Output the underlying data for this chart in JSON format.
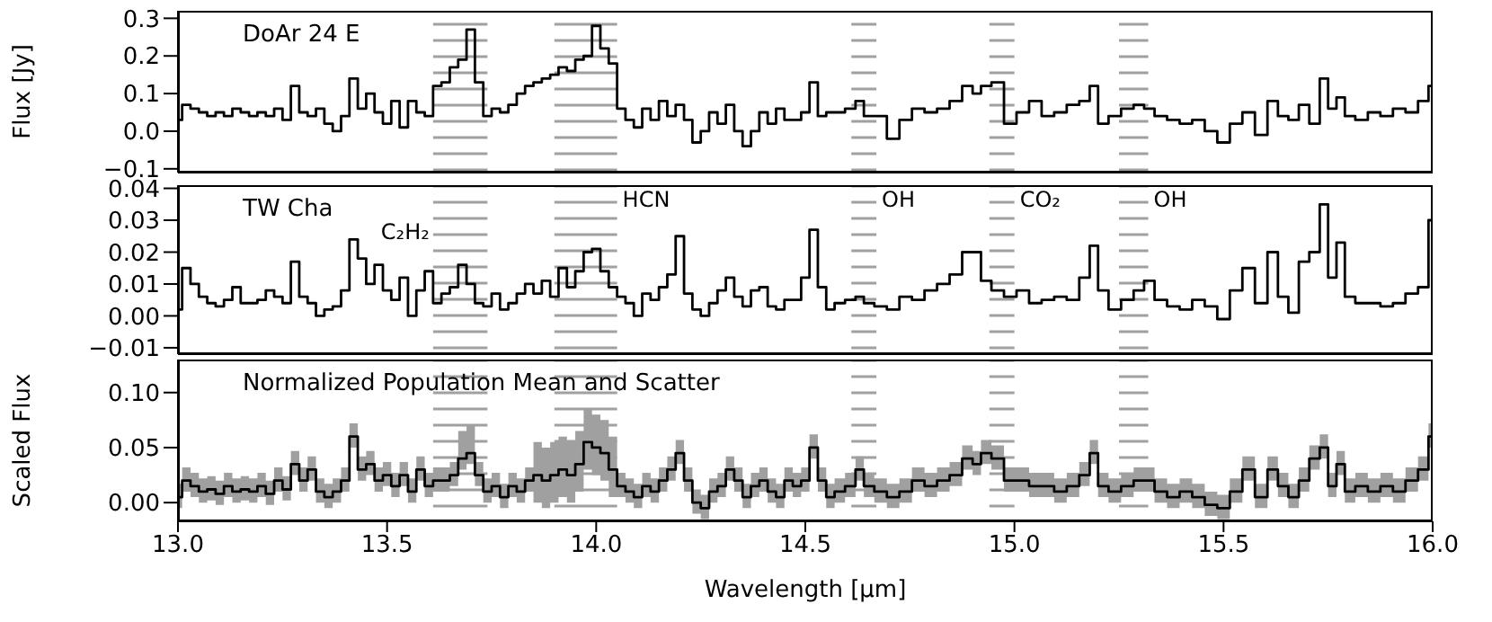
{
  "chart_data": [
    {
      "type": "step",
      "ylabel": "Flux [Jy]",
      "annotations": [
        "DoAr 24 E"
      ],
      "tick_labels": "y",
      "x": [
        13.0,
        13.02,
        13.04,
        13.06,
        13.08,
        13.1,
        13.12,
        13.14,
        13.16,
        13.18,
        13.2,
        13.22,
        13.24,
        13.26,
        13.28,
        13.3,
        13.32,
        13.34,
        13.36,
        13.38,
        13.4,
        13.42,
        13.44,
        13.46,
        13.48,
        13.5,
        13.52,
        13.54,
        13.56,
        13.58,
        13.6,
        13.62,
        13.64,
        13.66,
        13.68,
        13.7,
        13.72,
        13.74,
        13.76,
        13.78,
        13.8,
        13.82,
        13.84,
        13.86,
        13.88,
        13.9,
        13.92,
        13.94,
        13.96,
        13.98,
        14.0,
        14.02,
        14.04,
        14.06,
        14.08,
        14.1,
        14.12,
        14.14,
        14.16,
        14.18,
        14.2,
        14.22,
        14.24,
        14.26,
        14.28,
        14.3,
        14.32,
        14.34,
        14.36,
        14.38,
        14.4,
        14.42,
        14.44,
        14.46,
        14.48,
        14.5,
        14.52,
        14.54,
        14.56,
        14.58,
        14.61,
        14.63,
        14.65,
        14.68,
        14.71,
        14.74,
        14.77,
        14.8,
        14.83,
        14.86,
        14.89,
        14.91,
        14.93,
        14.96,
        14.99,
        15.02,
        15.05,
        15.08,
        15.11,
        15.14,
        15.17,
        15.19,
        15.21,
        15.24,
        15.27,
        15.3,
        15.32,
        15.35,
        15.38,
        15.41,
        15.44,
        15.47,
        15.5,
        15.53,
        15.56,
        15.59,
        15.62,
        15.64,
        15.67,
        15.69,
        15.72,
        15.74,
        15.76,
        15.78,
        15.8,
        15.83,
        15.86,
        15.89,
        15.92,
        15.95,
        15.98,
        16.0
      ],
      "series": [
        {
          "color": "#000000",
          "values": [
            0.03,
            0.07,
            0.06,
            0.05,
            0.04,
            0.05,
            0.04,
            0.06,
            0.05,
            0.04,
            0.05,
            0.04,
            0.06,
            0.03,
            0.12,
            0.05,
            0.04,
            0.06,
            0.02,
            0.0,
            0.04,
            0.14,
            0.06,
            0.1,
            0.05,
            0.02,
            0.08,
            0.01,
            0.08,
            0.05,
            0.04,
            0.12,
            0.13,
            0.17,
            0.19,
            0.27,
            0.13,
            0.04,
            0.06,
            0.05,
            0.07,
            0.1,
            0.12,
            0.13,
            0.14,
            0.15,
            0.17,
            0.16,
            0.19,
            0.2,
            0.28,
            0.22,
            0.18,
            0.06,
            0.03,
            0.01,
            0.06,
            0.03,
            0.08,
            0.04,
            0.07,
            0.03,
            -0.03,
            0.0,
            0.05,
            0.02,
            0.07,
            0.0,
            -0.04,
            0.0,
            0.05,
            0.02,
            0.06,
            0.03,
            0.03,
            0.05,
            0.13,
            0.04,
            0.05,
            0.05,
            0.06,
            0.08,
            0.04,
            0.04,
            -0.02,
            0.03,
            0.06,
            0.05,
            0.06,
            0.08,
            0.12,
            0.1,
            0.12,
            0.13,
            0.02,
            0.05,
            0.08,
            0.04,
            0.05,
            0.07,
            0.08,
            0.12,
            0.02,
            0.04,
            0.06,
            0.07,
            0.06,
            0.04,
            0.03,
            0.02,
            0.03,
            0.0,
            -0.03,
            0.02,
            0.05,
            -0.01,
            0.08,
            0.04,
            0.03,
            0.07,
            0.02,
            0.14,
            0.06,
            0.09,
            0.04,
            0.03,
            0.05,
            0.04,
            0.06,
            0.05,
            0.08,
            0.12
          ]
        }
      ],
      "xlim": [
        13,
        16
      ],
      "xticks": [
        {
          "value": 13,
          "label": null
        },
        {
          "value": 13.5,
          "label": null
        },
        {
          "value": 14,
          "label": null
        },
        {
          "value": 14.5,
          "label": null
        },
        {
          "value": 15,
          "label": null
        },
        {
          "value": 15.5,
          "label": null
        },
        {
          "value": 16,
          "label": null
        }
      ],
      "ylim": [
        -0.11,
        0.32
      ],
      "yticks": [
        {
          "value": -0.1,
          "label": "−0.1"
        },
        {
          "value": 0,
          "label": "0.0"
        },
        0.1,
        0.2,
        0.3
      ],
      "bands": [
        {
          "axis": "x",
          "from": 13.61,
          "to": 13.74,
          "color": "#a0a0a0"
        },
        {
          "axis": "x",
          "from": 13.9,
          "to": 14.05,
          "color": "#a0a0a0"
        },
        {
          "axis": "x",
          "from": 14.61,
          "to": 14.67,
          "color": "#a0a0a0"
        },
        {
          "axis": "x",
          "from": 14.94,
          "to": 15.0,
          "color": "#a0a0a0"
        },
        {
          "axis": "x",
          "from": 15.25,
          "to": 15.32,
          "color": "#a0a0a0"
        }
      ]
    },
    {
      "type": "step",
      "annotations": [
        "TW Cha"
      ],
      "tick_labels": "y",
      "x": [
        13.0,
        13.02,
        13.04,
        13.06,
        13.08,
        13.1,
        13.12,
        13.14,
        13.16,
        13.18,
        13.2,
        13.22,
        13.24,
        13.26,
        13.28,
        13.3,
        13.32,
        13.34,
        13.36,
        13.38,
        13.4,
        13.42,
        13.44,
        13.46,
        13.48,
        13.5,
        13.52,
        13.54,
        13.56,
        13.58,
        13.6,
        13.62,
        13.64,
        13.66,
        13.68,
        13.7,
        13.72,
        13.74,
        13.76,
        13.78,
        13.8,
        13.82,
        13.84,
        13.86,
        13.88,
        13.9,
        13.92,
        13.94,
        13.96,
        13.98,
        14.0,
        14.02,
        14.04,
        14.06,
        14.08,
        14.1,
        14.12,
        14.14,
        14.16,
        14.18,
        14.2,
        14.22,
        14.24,
        14.26,
        14.28,
        14.3,
        14.32,
        14.34,
        14.36,
        14.38,
        14.4,
        14.42,
        14.44,
        14.46,
        14.48,
        14.5,
        14.52,
        14.54,
        14.56,
        14.58,
        14.61,
        14.63,
        14.65,
        14.68,
        14.71,
        14.74,
        14.77,
        14.8,
        14.83,
        14.86,
        14.89,
        14.91,
        14.93,
        14.96,
        14.99,
        15.02,
        15.05,
        15.08,
        15.11,
        15.14,
        15.17,
        15.19,
        15.21,
        15.24,
        15.27,
        15.3,
        15.32,
        15.35,
        15.38,
        15.41,
        15.44,
        15.47,
        15.5,
        15.53,
        15.56,
        15.59,
        15.62,
        15.64,
        15.67,
        15.69,
        15.72,
        15.74,
        15.76,
        15.78,
        15.8,
        15.83,
        15.86,
        15.89,
        15.92,
        15.95,
        15.98,
        16.0
      ],
      "series": [
        {
          "color": "#000000",
          "values": [
            0.002,
            0.015,
            0.01,
            0.006,
            0.004,
            0.003,
            0.005,
            0.009,
            0.004,
            0.004,
            0.005,
            0.008,
            0.006,
            0.004,
            0.017,
            0.006,
            0.004,
            0.0,
            0.002,
            0.003,
            0.008,
            0.024,
            0.018,
            0.01,
            0.016,
            0.008,
            0.005,
            0.012,
            0.0,
            0.008,
            0.014,
            0.004,
            0.007,
            0.009,
            0.016,
            0.01,
            0.004,
            0.003,
            0.007,
            0.002,
            0.004,
            0.007,
            0.01,
            0.007,
            0.011,
            0.006,
            0.015,
            0.009,
            0.014,
            0.02,
            0.021,
            0.014,
            0.009,
            0.006,
            0.004,
            0.0,
            0.007,
            0.005,
            0.009,
            0.013,
            0.025,
            0.007,
            0.002,
            0.0,
            0.004,
            0.008,
            0.012,
            0.006,
            0.003,
            0.008,
            0.009,
            0.003,
            0.002,
            0.005,
            0.005,
            0.012,
            0.027,
            0.009,
            0.002,
            0.004,
            0.005,
            0.006,
            0.004,
            0.003,
            0.002,
            0.006,
            0.005,
            0.008,
            0.01,
            0.013,
            0.02,
            0.02,
            0.011,
            0.008,
            0.006,
            0.008,
            0.004,
            0.005,
            0.006,
            0.005,
            0.012,
            0.022,
            0.008,
            0.002,
            0.005,
            0.008,
            0.011,
            0.005,
            0.003,
            0.002,
            0.005,
            0.003,
            -0.001,
            0.008,
            0.015,
            0.004,
            0.02,
            0.006,
            0.001,
            0.017,
            0.02,
            0.035,
            0.012,
            0.023,
            0.006,
            0.004,
            0.004,
            0.003,
            0.004,
            0.007,
            0.009,
            0.03
          ]
        }
      ],
      "xlim": [
        13,
        16
      ],
      "xticks": [
        {
          "value": 13,
          "label": null
        },
        {
          "value": 13.5,
          "label": null
        },
        {
          "value": 14,
          "label": null
        },
        {
          "value": 14.5,
          "label": null
        },
        {
          "value": 15,
          "label": null
        },
        {
          "value": 15.5,
          "label": null
        },
        {
          "value": 16,
          "label": null
        }
      ],
      "ylim": [
        -0.012,
        0.041
      ],
      "yticks": [
        {
          "value": -0.01,
          "label": "−0.01"
        },
        {
          "value": 0,
          "label": "0.00"
        },
        0.01,
        0.02,
        0.03,
        0.04
      ],
      "bands": [
        {
          "axis": "x",
          "from": 13.61,
          "to": 13.74,
          "label": "C₂H₂",
          "color": "#a0a0a0"
        },
        {
          "axis": "x",
          "from": 13.9,
          "to": 14.05,
          "label": "HCN",
          "color": "#a0a0a0"
        },
        {
          "axis": "x",
          "from": 14.61,
          "to": 14.67,
          "label": "OH",
          "color": "#a0a0a0"
        },
        {
          "axis": "x",
          "from": 14.94,
          "to": 15.0,
          "label": "CO₂",
          "color": "#a0a0a0"
        },
        {
          "axis": "x",
          "from": 15.25,
          "to": 15.32,
          "label": "OH",
          "color": "#a0a0a0"
        }
      ]
    },
    {
      "type": "step",
      "ylabel": "Scaled Flux",
      "xlabel": "Wavelength [μm]",
      "annotations": [
        "Normalized Population Mean and Scatter"
      ],
      "x": [
        13.0,
        13.02,
        13.04,
        13.06,
        13.08,
        13.1,
        13.12,
        13.14,
        13.16,
        13.18,
        13.2,
        13.22,
        13.24,
        13.26,
        13.28,
        13.3,
        13.32,
        13.34,
        13.36,
        13.38,
        13.4,
        13.42,
        13.44,
        13.46,
        13.48,
        13.5,
        13.52,
        13.54,
        13.56,
        13.58,
        13.6,
        13.62,
        13.64,
        13.66,
        13.68,
        13.7,
        13.72,
        13.74,
        13.76,
        13.78,
        13.8,
        13.82,
        13.84,
        13.86,
        13.88,
        13.9,
        13.92,
        13.94,
        13.96,
        13.98,
        14.0,
        14.02,
        14.04,
        14.06,
        14.08,
        14.1,
        14.12,
        14.14,
        14.16,
        14.18,
        14.2,
        14.22,
        14.24,
        14.26,
        14.28,
        14.3,
        14.32,
        14.34,
        14.36,
        14.38,
        14.4,
        14.42,
        14.44,
        14.46,
        14.48,
        14.5,
        14.52,
        14.54,
        14.56,
        14.58,
        14.61,
        14.63,
        14.65,
        14.68,
        14.71,
        14.74,
        14.77,
        14.8,
        14.83,
        14.86,
        14.89,
        14.91,
        14.93,
        14.96,
        14.99,
        15.02,
        15.05,
        15.08,
        15.11,
        15.14,
        15.17,
        15.19,
        15.21,
        15.24,
        15.27,
        15.3,
        15.32,
        15.35,
        15.38,
        15.41,
        15.44,
        15.47,
        15.5,
        15.53,
        15.56,
        15.59,
        15.62,
        15.64,
        15.67,
        15.69,
        15.72,
        15.74,
        15.76,
        15.78,
        15.8,
        15.83,
        15.86,
        15.89,
        15.92,
        15.95,
        15.98,
        16.0
      ],
      "series": [
        {
          "color": "#000000",
          "values": [
            0.005,
            0.02,
            0.015,
            0.01,
            0.012,
            0.008,
            0.015,
            0.01,
            0.012,
            0.01,
            0.015,
            0.008,
            0.02,
            0.012,
            0.035,
            0.02,
            0.03,
            0.01,
            0.005,
            0.01,
            0.02,
            0.06,
            0.03,
            0.035,
            0.02,
            0.025,
            0.015,
            0.025,
            0.01,
            0.03,
            0.015,
            0.02,
            0.02,
            0.025,
            0.04,
            0.045,
            0.025,
            0.01,
            0.015,
            0.005,
            0.015,
            0.01,
            0.02,
            0.025,
            0.02,
            0.025,
            0.03,
            0.025,
            0.035,
            0.055,
            0.05,
            0.045,
            0.03,
            0.015,
            0.01,
            0.005,
            0.015,
            0.01,
            0.02,
            0.03,
            0.045,
            0.02,
            0.0,
            -0.005,
            0.01,
            0.015,
            0.03,
            0.02,
            0.005,
            0.015,
            0.02,
            0.01,
            0.005,
            0.02,
            0.015,
            0.02,
            0.05,
            0.02,
            0.005,
            0.01,
            0.015,
            0.03,
            0.015,
            0.01,
            0.005,
            0.01,
            0.02,
            0.015,
            0.02,
            0.025,
            0.04,
            0.035,
            0.045,
            0.04,
            0.02,
            0.02,
            0.015,
            0.015,
            0.01,
            0.015,
            0.025,
            0.045,
            0.015,
            0.01,
            0.015,
            0.02,
            0.02,
            0.01,
            0.005,
            0.01,
            0.005,
            -0.002,
            -0.005,
            0.01,
            0.03,
            0.005,
            0.03,
            0.015,
            0.005,
            0.02,
            0.04,
            0.05,
            0.015,
            0.035,
            0.01,
            0.015,
            0.01,
            0.015,
            0.01,
            0.02,
            0.03,
            0.06
          ],
          "lower": [
            -0.005,
            0.01,
            0.005,
            0.0,
            0.002,
            -0.002,
            0.005,
            0.0,
            0.002,
            0.0,
            0.005,
            -0.002,
            0.01,
            0.002,
            0.025,
            0.01,
            0.02,
            0.0,
            -0.005,
            0.0,
            0.01,
            0.05,
            0.02,
            0.025,
            0.01,
            0.015,
            0.005,
            0.015,
            0.0,
            0.02,
            0.005,
            0.01,
            0.01,
            0.015,
            0.03,
            0.035,
            0.015,
            0.0,
            0.005,
            -0.005,
            0.005,
            0.0,
            0.01,
            0.0,
            -0.005,
            0.0,
            0.005,
            0.0,
            0.01,
            0.03,
            0.025,
            0.02,
            0.005,
            0.005,
            0.0,
            -0.005,
            0.005,
            0.0,
            0.01,
            0.02,
            0.035,
            0.01,
            -0.01,
            -0.015,
            0.0,
            0.005,
            0.02,
            0.01,
            -0.005,
            0.005,
            0.01,
            0.0,
            -0.005,
            0.01,
            0.005,
            0.01,
            0.04,
            0.01,
            -0.005,
            0.0,
            0.005,
            0.02,
            0.005,
            0.0,
            -0.005,
            0.0,
            0.01,
            0.005,
            0.01,
            0.015,
            0.03,
            0.025,
            0.035,
            0.03,
            0.01,
            0.01,
            0.005,
            0.005,
            0.0,
            0.005,
            0.015,
            0.035,
            0.005,
            0.0,
            0.005,
            0.01,
            0.01,
            0.0,
            -0.005,
            0.0,
            -0.005,
            -0.012,
            -0.015,
            0.0,
            0.02,
            -0.005,
            0.02,
            0.005,
            -0.005,
            0.01,
            0.03,
            0.04,
            0.005,
            0.025,
            0.0,
            0.005,
            0.0,
            0.005,
            0.0,
            0.01,
            0.02,
            0.05
          ],
          "upper": [
            0.017,
            0.032,
            0.027,
            0.022,
            0.024,
            0.02,
            0.027,
            0.022,
            0.024,
            0.022,
            0.027,
            0.02,
            0.032,
            0.024,
            0.047,
            0.032,
            0.042,
            0.022,
            0.017,
            0.022,
            0.032,
            0.072,
            0.042,
            0.047,
            0.032,
            0.037,
            0.027,
            0.037,
            0.022,
            0.042,
            0.027,
            0.032,
            0.032,
            0.037,
            0.065,
            0.07,
            0.037,
            0.022,
            0.027,
            0.017,
            0.027,
            0.022,
            0.032,
            0.055,
            0.05,
            0.055,
            0.06,
            0.055,
            0.065,
            0.085,
            0.08,
            0.075,
            0.06,
            0.027,
            0.022,
            0.017,
            0.027,
            0.022,
            0.032,
            0.042,
            0.057,
            0.032,
            0.012,
            0.007,
            0.022,
            0.027,
            0.042,
            0.032,
            0.017,
            0.027,
            0.032,
            0.022,
            0.017,
            0.032,
            0.027,
            0.032,
            0.062,
            0.032,
            0.017,
            0.022,
            0.027,
            0.042,
            0.027,
            0.022,
            0.017,
            0.022,
            0.032,
            0.027,
            0.032,
            0.037,
            0.052,
            0.047,
            0.057,
            0.052,
            0.032,
            0.032,
            0.027,
            0.027,
            0.022,
            0.027,
            0.037,
            0.057,
            0.027,
            0.022,
            0.027,
            0.032,
            0.032,
            0.022,
            0.017,
            0.022,
            0.017,
            0.01,
            0.007,
            0.022,
            0.042,
            0.017,
            0.042,
            0.027,
            0.017,
            0.032,
            0.052,
            0.062,
            0.027,
            0.047,
            0.022,
            0.027,
            0.022,
            0.027,
            0.022,
            0.032,
            0.042,
            0.072
          ]
        }
      ],
      "xlim": [
        13,
        16
      ],
      "xticks": [
        {
          "value": 13,
          "label": "13.0"
        },
        13.5,
        {
          "value": 14,
          "label": "14.0"
        },
        14.5,
        {
          "value": 15,
          "label": "15.0"
        },
        15.5,
        {
          "value": 16,
          "label": "16.0"
        }
      ],
      "ylim": [
        -0.017,
        0.13
      ],
      "yticks": [
        {
          "value": 0,
          "label": "0.00"
        },
        0.05,
        {
          "value": 0.1,
          "label": "0.10"
        }
      ],
      "bands": [
        {
          "axis": "x",
          "from": 13.61,
          "to": 13.74,
          "color": "#a0a0a0"
        },
        {
          "axis": "x",
          "from": 13.9,
          "to": 14.05,
          "color": "#a0a0a0"
        },
        {
          "axis": "x",
          "from": 14.61,
          "to": 14.67,
          "color": "#a0a0a0"
        },
        {
          "axis": "x",
          "from": 14.94,
          "to": 15.0,
          "color": "#a0a0a0"
        },
        {
          "axis": "x",
          "from": 15.25,
          "to": 15.32,
          "color": "#a0a0a0"
        }
      ]
    }
  ]
}
